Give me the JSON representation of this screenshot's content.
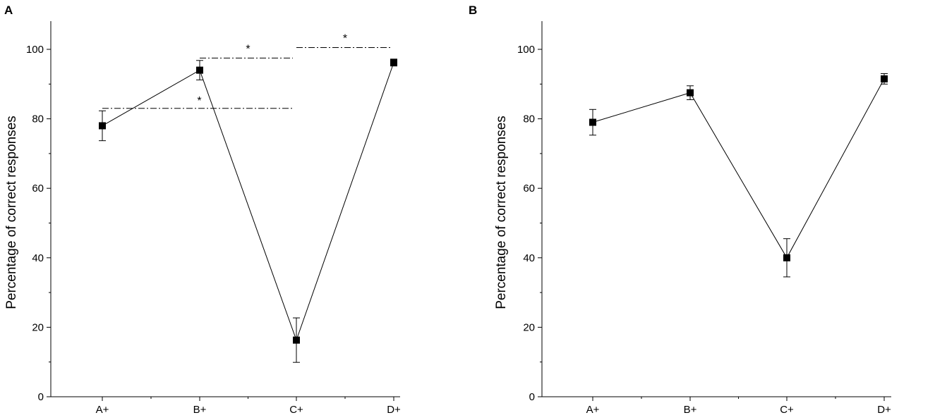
{
  "chart_data": [
    {
      "panel": "A",
      "type": "line",
      "categories": [
        "A+",
        "B+",
        "C+",
        "D+"
      ],
      "values": [
        78,
        94,
        16.3,
        96.2
      ],
      "error": [
        4.3,
        2.8,
        6.4,
        1.0
      ],
      "ylabel": "Percentage of correct responses",
      "xlabel": "",
      "ylim": [
        0,
        100
      ],
      "yticks": [
        "0",
        "20",
        "40",
        "60",
        "80",
        "100"
      ],
      "significance": [
        {
          "from": "A+",
          "to": "C+",
          "y": 83,
          "label": "*"
        },
        {
          "from": "B+",
          "to": "C+",
          "y": 97.5,
          "label": "*"
        },
        {
          "from": "C+",
          "to": "D+",
          "y": 100.5,
          "label": "*"
        }
      ]
    },
    {
      "panel": "B",
      "type": "line",
      "categories": [
        "A+",
        "B+",
        "C+",
        "D+"
      ],
      "values": [
        79,
        87.5,
        40,
        91.5
      ],
      "error": [
        3.7,
        2.0,
        5.5,
        1.5
      ],
      "ylabel": "Percentage of correct responses",
      "xlabel": "",
      "ylim": [
        0,
        100
      ],
      "yticks": [
        "0",
        "20",
        "40",
        "60",
        "80",
        "100"
      ],
      "significance": []
    }
  ],
  "style": {
    "line_color": "#000000",
    "marker_color": "#000000",
    "significance_line_color": "#000000"
  }
}
